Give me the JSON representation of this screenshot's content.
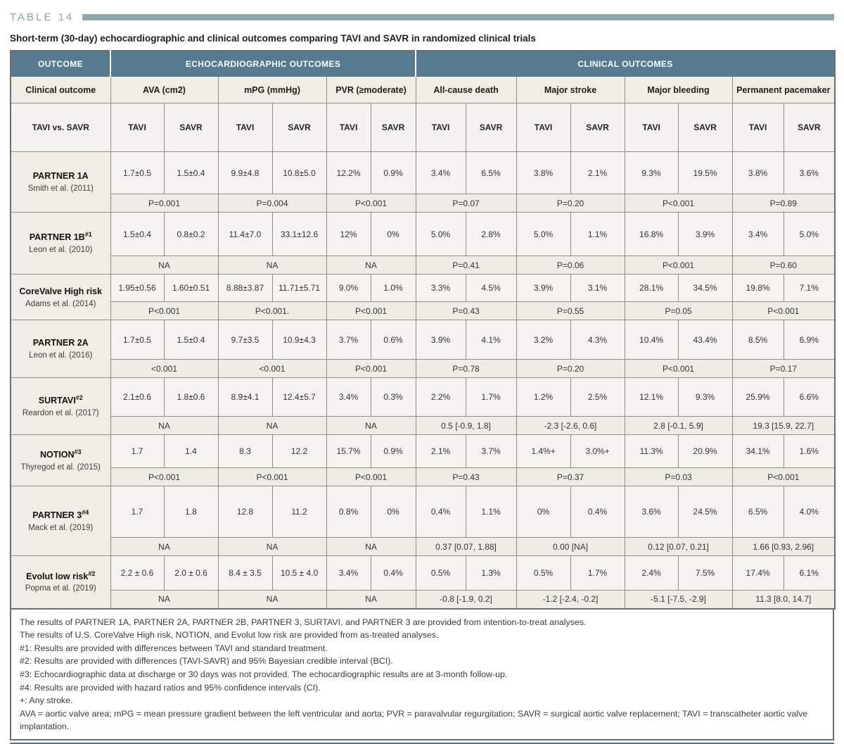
{
  "table_label": "TABLE 14",
  "title": "Short-term (30-day) echocardiographic and clinical outcomes comparing TAVI and SAVR in randomized clinical trials",
  "colors": {
    "header_teal": "#567b90",
    "label_bar": "#8fa6ad",
    "bottom_bar": "#527689",
    "beige_cell": "#f1ede4",
    "value_cell": "#f4f3f0",
    "pvalue_cell": "#efece5"
  },
  "header": {
    "outcome": "OUTCOME",
    "echo_group": "ECHOCARDIOGRAPHIC OUTCOMES",
    "clinical_group": "CLINICAL OUTCOMES",
    "clinical_outcome_label": "Clinical outcome",
    "tavi_vs_savr": "TAVI vs. SAVR",
    "tavi": "TAVI",
    "savr": "SAVR",
    "measures": [
      "AVA (cm2)",
      "mPG (mmHg)",
      "PVR (≥moderate)",
      "All-cause death",
      "Major stroke",
      "Major bleeding",
      "Permanent pacemaker"
    ]
  },
  "studies": [
    {
      "name": "PARTNER 1A",
      "sup": "",
      "author": "Smith et al. (2011)",
      "values": [
        "1.7±0.5",
        "1.5±0.4",
        "9.9±4.8",
        "10.8±5.0",
        "12.2%",
        "0.9%",
        "3.4%",
        "6.5%",
        "3.8%",
        "2.1%",
        "9.3%",
        "19.5%",
        "3.8%",
        "3.6%"
      ],
      "pvalues": [
        "P=0.001",
        "P=0.004",
        "P<0.001",
        "P=0.07",
        "P=0.20",
        "P<0.001",
        "P=0.89"
      ]
    },
    {
      "name": "PARTNER 1B",
      "sup": "#1",
      "author": "Leon et al. (2010)",
      "values": [
        "1.5±0.4",
        "0.8±0.2",
        "11.4±7.0",
        "33.1±12.6",
        "12%",
        "0%",
        "5.0%",
        "2.8%",
        "5.0%",
        "1.1%",
        "16.8%",
        "3.9%",
        "3.4%",
        "5.0%"
      ],
      "pvalues": [
        "NA",
        "NA",
        "NA",
        "P=0.41",
        "P=0.06",
        "P<0.001",
        "P=0.60"
      ]
    },
    {
      "name": "CoreValve High risk",
      "sup": "",
      "author": "Adams et al. (2014)",
      "values": [
        "1.95±0.56",
        "1.60±0.51",
        "8.88±3.87",
        "11.71±5.71",
        "9.0%",
        "1.0%",
        "3.3%",
        "4.5%",
        "3.9%",
        "3.1%",
        "28.1%",
        "34.5%",
        "19.8%",
        "7.1%"
      ],
      "pvalues": [
        "P<0.001",
        "P<0.001.",
        "P<0.001",
        "P=0.43",
        "P=0.55",
        "P=0.05",
        "P<0.001"
      ]
    },
    {
      "name": "PARTNER 2A",
      "sup": "",
      "author": "Leon et al. (2016)",
      "values": [
        "1.7±0.5",
        "1.5±0.4",
        "9.7±3.5",
        "10.9±4.3",
        "3.7%",
        "0.6%",
        "3.9%",
        "4.1%",
        "3.2%",
        "4.3%",
        "10.4%",
        "43.4%",
        "8.5%",
        "6.9%"
      ],
      "pvalues": [
        "<0.001",
        "<0.001",
        "P<0.001",
        "P=0.78",
        "P=0.20",
        "P<0.001",
        "P=0.17"
      ]
    },
    {
      "name": "SURTAVI",
      "sup": "#2",
      "author": "Reardon et al. (2017)",
      "values": [
        "2.1±0.6",
        "1.8±0.6",
        "8.9±4.1",
        "12.4±5.7",
        "3.4%",
        "0.3%",
        "2.2%",
        "1.7%",
        "1.2%",
        "2.5%",
        "12.1%",
        "9.3%",
        "25.9%",
        "6.6%"
      ],
      "pvalues": [
        "NA",
        "NA",
        "NA",
        "0.5 [-0.9, 1.8]",
        "-2.3 [-2.6, 0.6]",
        "2.8 [-0.1, 5.9]",
        "19.3 [15.9, 22.7]"
      ]
    },
    {
      "name": "NOTION",
      "sup": "#3",
      "author": "Thyregod et al. (2015)",
      "values": [
        "1.7",
        "1.4",
        "8.3",
        "12.2",
        "15.7%",
        "0.9%",
        "2.1%",
        "3.7%",
        "1.4%+",
        "3.0%+",
        "11.3%",
        "20.9%",
        "34.1%",
        "1.6%"
      ],
      "pvalues": [
        "P<0.001",
        "P<0.001",
        "P<0.001",
        "P=0.43",
        "P=0.37",
        "P=0.03",
        "P<0.001"
      ]
    },
    {
      "name": "PARTNER 3",
      "sup": "#4",
      "author": "Mack et al. (2019)",
      "values": [
        "1.7",
        "1.8",
        "12.8",
        "11.2",
        "0.8%",
        "0%",
        "0.4%",
        "1.1%",
        "0%",
        "0.4%",
        "3.6%",
        "24.5%",
        "6.5%",
        "4.0%"
      ],
      "pvalues": [
        "NA",
        "NA",
        "NA",
        "0.37 [0.07, 1.88]",
        "0.00 [NA]",
        "0.12 [0.07, 0.21]",
        "1.66 [0.93, 2.96]"
      ]
    },
    {
      "name": "Evolut low risk",
      "sup": "#2",
      "author": "Popma et al. (2019)",
      "values": [
        "2.2 ± 0.6",
        "2.0 ± 0.6",
        "8.4 ± 3.5",
        "10.5 ± 4.0",
        "3.4%",
        "0.4%",
        "0.5%",
        "1.3%",
        "0.5%",
        "1.7%",
        "2.4%",
        "7.5%",
        "17.4%",
        "6.1%"
      ],
      "pvalues": [
        "NA",
        "NA",
        "NA",
        "-0.8 [-1.9, 0.2]",
        "-1.2 [-2.4, -0.2]",
        "-5.1 [-7.5, -2.9]",
        "11.3 [8.0, 14.7]"
      ]
    }
  ],
  "footnotes": [
    "The results of PARTNER 1A, PARTNER 2A, PARTNER 2B, PARTNER 3, SURTAVI, and PARTNER 3 are provided from intention-to-treat analyses.",
    "The results of U.S. CoreValve High risk, NOTION, and Evolut low risk are provided from as-treated analyses.",
    "#1: Results are provided with differences between TAVI and standard treatment.",
    "#2: Results are provided with differences (TAVI-SAVR) and 95% Bayesian credible interval (BCI).",
    "#3: Echocardiographic data at discharge or 30 days was not provided. The echocardiographic results are at 3-month follow-up.",
    "#4: Results are provided with hazard ratios and 95% confidence intervals (CI).",
    "+: Any stroke.",
    "AVA = aortic valve area; mPG = mean pressure gradient between the left ventricular and aorta; PVR = paravalvular regurgitation; SAVR = surgical aortic valve replacement; TAVI = transcatheter aortic valve implantation."
  ]
}
